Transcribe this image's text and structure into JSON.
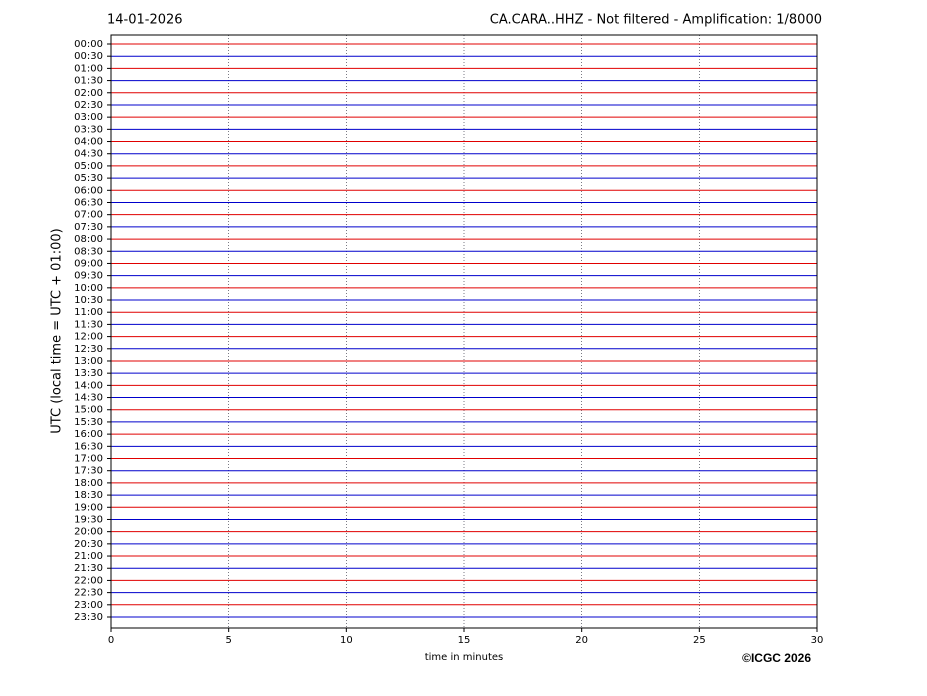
{
  "chart_data": {
    "type": "helicorder",
    "date": "14-01-2026",
    "title": "CA.CARA..HHZ - Not filtered - Amplification: 1/8000",
    "ylabel": "UTC (local time = UTC + 01:00)",
    "xlabel": "time in minutes",
    "credit": "©ICGC 2026",
    "categories": [
      "00:00",
      "00:30",
      "01:00",
      "01:30",
      "02:00",
      "02:30",
      "03:00",
      "03:30",
      "04:00",
      "04:30",
      "05:00",
      "05:30",
      "06:00",
      "06:30",
      "07:00",
      "07:30",
      "08:00",
      "08:30",
      "09:00",
      "09:30",
      "10:00",
      "10:30",
      "11:00",
      "11:30",
      "12:00",
      "12:30",
      "13:00",
      "13:30",
      "14:00",
      "14:30",
      "15:00",
      "15:30",
      "16:00",
      "16:30",
      "17:00",
      "17:30",
      "18:00",
      "18:30",
      "19:00",
      "19:30",
      "20:00",
      "20:30",
      "21:00",
      "21:30",
      "22:00",
      "22:30",
      "23:00",
      "23:30"
    ],
    "colors": [
      "#e00000",
      "#0000cc"
    ],
    "xlim": [
      0,
      30
    ],
    "xticks": [
      0,
      5,
      10,
      15,
      20,
      25,
      30
    ],
    "grid": true
  }
}
